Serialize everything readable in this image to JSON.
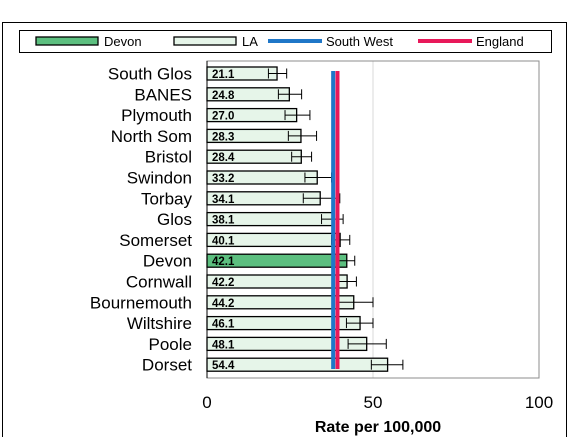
{
  "chart_data": {
    "type": "bar",
    "orientation": "horizontal",
    "title": "",
    "xlabel": "Rate per 100,000",
    "ylabel": "",
    "xlim": [
      0,
      100
    ],
    "xticks": [
      0,
      50,
      100
    ],
    "categories": [
      "South Glos",
      "BANES",
      "Plymouth",
      "North Som",
      "Bristol",
      "Swindon",
      "Torbay",
      "Glos",
      "Somerset",
      "Devon",
      "Cornwall",
      "Bournemouth",
      "Wiltshire",
      "Poole",
      "Dorset"
    ],
    "values": [
      21.1,
      24.8,
      27.0,
      28.3,
      28.4,
      33.2,
      34.1,
      38.1,
      40.1,
      42.1,
      42.2,
      44.2,
      46.1,
      48.1,
      54.4
    ],
    "value_labels": [
      "21.1",
      "24.8",
      "27.0",
      "28.3",
      "28.4",
      "33.2",
      "34.1",
      "38.1",
      "40.1",
      "42.1",
      "42.2",
      "44.2",
      "46.1",
      "48.1",
      "54.4"
    ],
    "error_low": [
      18.5,
      21.5,
      23.5,
      24.5,
      25.5,
      29.5,
      29.0,
      34.5,
      37.5,
      39.5,
      39.5,
      39.5,
      42.0,
      42.5,
      49.5
    ],
    "error_high": [
      24.0,
      28.5,
      31.0,
      33.0,
      31.5,
      37.5,
      40.0,
      41.0,
      43.0,
      44.5,
      45.0,
      50.0,
      50.0,
      54.0,
      59.0
    ],
    "highlight_category": "Devon",
    "reference_lines": [
      {
        "name": "South West",
        "value": 38.0,
        "color": "#1f77c8"
      },
      {
        "name": "England",
        "value": 39.3,
        "color": "#e8185a"
      }
    ],
    "legend": {
      "placement": "top",
      "entries": [
        {
          "label": "Devon",
          "kind": "bar",
          "color": "#5cbf7f"
        },
        {
          "label": "LA",
          "kind": "bar",
          "color": "#e6f5e9"
        },
        {
          "label": "South West",
          "kind": "line",
          "color": "#1f77c8"
        },
        {
          "label": "England",
          "kind": "line",
          "color": "#e8185a"
        }
      ]
    },
    "grid": "vertical"
  },
  "colors": {
    "devon_bar": "#5cbf7f",
    "la_bar": "#e6f5e9",
    "bar_outline": "#000000",
    "grid": "#d9d9d9"
  }
}
